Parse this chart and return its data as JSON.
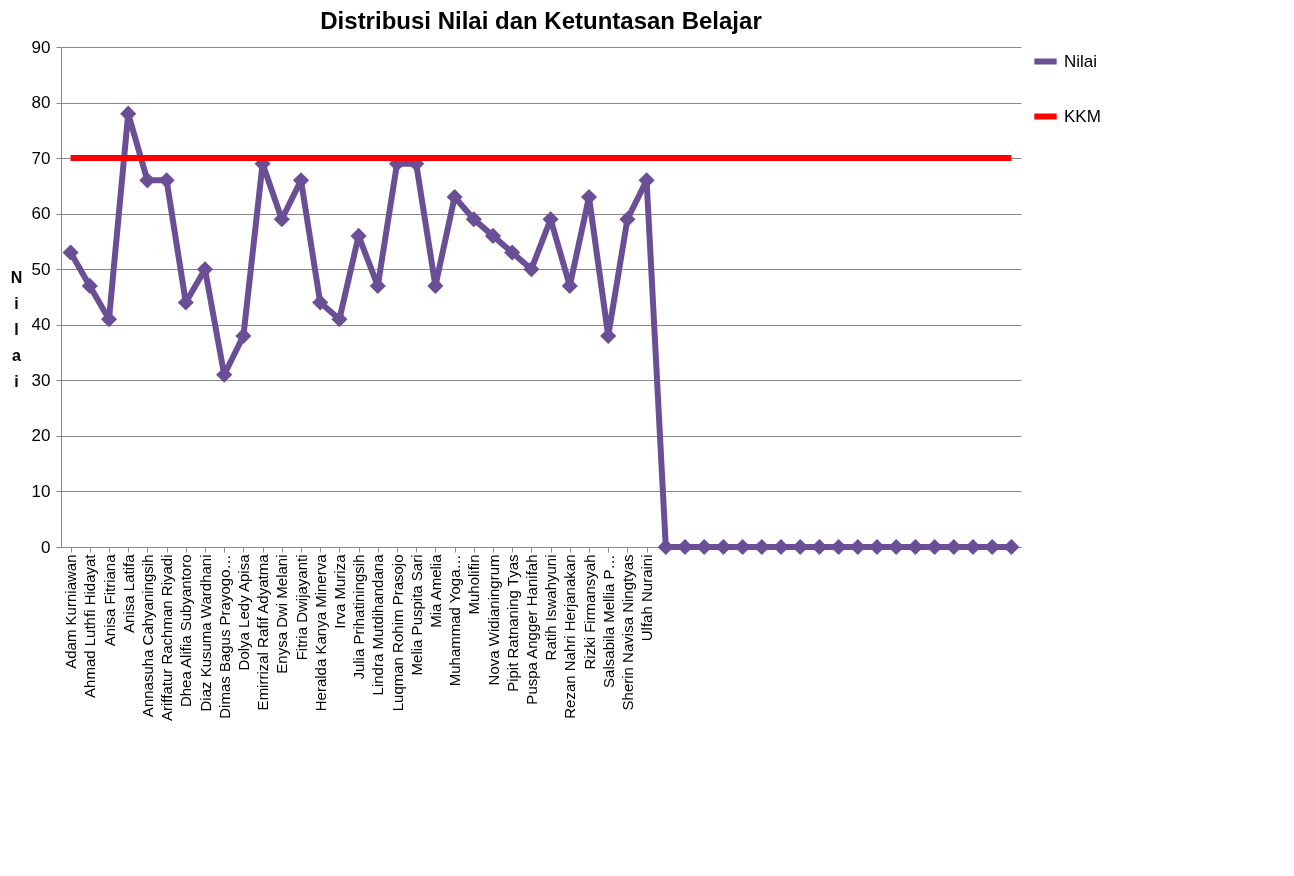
{
  "chart_data": {
    "type": "line",
    "title": "Distribusi Nilai dan Ketuntasan Belajar",
    "ylabel": "Nilai",
    "categories": [
      "Adam Kurniawan",
      "Ahmad Luthfi Hidayat",
      "Anisa Fitriana",
      "Anisa Latifa",
      "Annasuha Cahyaningsih",
      "Ariffatur Rachman Riyadi",
      "Dhea Alifia Subyantoro",
      "Diaz Kusuma Wardhani",
      "Dimas Bagus Prayogo…",
      "Dolya Ledy Apisa",
      "Emirrizal Rafif Adyatma",
      "Enysa Dwi Melani",
      "Fitria Dwijayanti",
      "Heralda Kanya Minerva",
      "Irva Muriza",
      "Julia Prihatiningsih",
      "Lindra Mutdihandana",
      "Luqman Rohim Prasojo",
      "Melia Puspita Sari",
      "Mia Amelia",
      "Muhammad Yoga…",
      "Muholifin",
      "Nova Widianingrum",
      "Pipit Ratnaning Tyas",
      "Puspa Angger Hanifah",
      "Ratih Iswahyuni",
      "Rezan Nahri Herjanakan",
      "Rizki Firmansyah",
      "Salsabila Mellia P…",
      "Sherin Navisa Ningtyas",
      "Ulfah Nuraini",
      null,
      null,
      null,
      null,
      null,
      null,
      null,
      null,
      null,
      null,
      null,
      null,
      null,
      null,
      null,
      null,
      null,
      null,
      null
    ],
    "series": [
      {
        "name": "Nilai",
        "color": "#6b4f96",
        "marker": "diamond",
        "values": [
          53,
          47,
          41,
          78,
          66,
          66,
          44,
          50,
          31,
          38,
          69,
          59,
          66,
          44,
          41,
          56,
          47,
          69,
          69,
          47,
          63,
          59,
          56,
          53,
          50,
          59,
          47,
          63,
          38,
          59,
          66,
          0,
          0,
          0,
          0,
          0,
          0,
          0,
          0,
          0,
          0,
          0,
          0,
          0,
          0,
          0,
          0,
          0,
          0,
          0
        ]
      },
      {
        "name": "KKM",
        "color": "#ff0000",
        "marker": "none",
        "values": [
          70,
          70,
          70,
          70,
          70,
          70,
          70,
          70,
          70,
          70,
          70,
          70,
          70,
          70,
          70,
          70,
          70,
          70,
          70,
          70,
          70,
          70,
          70,
          70,
          70,
          70,
          70,
          70,
          70,
          70,
          70,
          70,
          70,
          70,
          70,
          70,
          70,
          70,
          70,
          70,
          70,
          70,
          70,
          70,
          70,
          70,
          70,
          70,
          70,
          70
        ]
      }
    ],
    "ylim": [
      0,
      90
    ],
    "yticks": [
      0,
      10,
      20,
      30,
      40,
      50,
      60,
      70,
      80,
      90
    ],
    "grid": "y",
    "legend": "right"
  }
}
